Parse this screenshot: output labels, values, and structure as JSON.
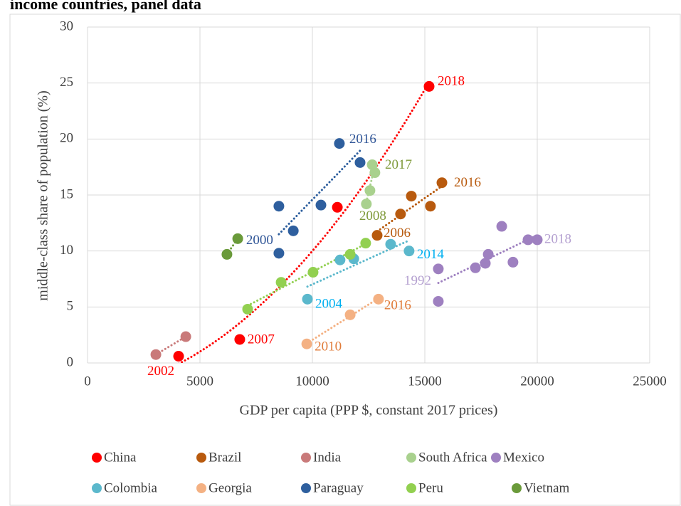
{
  "chart_data": {
    "type": "scatter",
    "title": "income countries, panel data",
    "x_label": "GDP per capita (PPP $, constant 2017 prices)",
    "y_label": "middle-class share of population (%)",
    "xlim": [
      0,
      25000
    ],
    "xticks": [
      0,
      5000,
      10000,
      15000,
      20000,
      25000
    ],
    "ylim": [
      0,
      30
    ],
    "yticks": [
      0,
      5,
      10,
      15,
      20,
      25,
      30
    ],
    "grid": true,
    "legend": "bottom",
    "series": [
      {
        "name": "China",
        "color": "#ff0000",
        "label_color": "#ff0000",
        "trendline_order": 2,
        "x": [
          4050,
          6770,
          11110,
          15190
        ],
        "values": [
          0.6,
          2.1,
          13.9,
          24.7
        ],
        "point_labels": [
          "2002",
          "2007",
          null,
          "2018"
        ]
      },
      {
        "name": "Brazil",
        "color": "#b85a0e",
        "label_color": "#b85a0e",
        "trendline_order": 1,
        "x": [
          12880,
          13920,
          14400,
          15250,
          15760
        ],
        "values": [
          11.4,
          13.3,
          14.9,
          14.0,
          16.1
        ],
        "point_labels": [
          "2006",
          null,
          null,
          null,
          "2016"
        ]
      },
      {
        "name": "India",
        "color": "#c97a7a",
        "label_color": "#c97a7a",
        "trendline_order": 1,
        "x": [
          3040,
          4370
        ],
        "values": [
          0.75,
          2.35
        ],
        "point_labels": [
          null,
          null
        ]
      },
      {
        "name": "South Africa",
        "color": "#a9d18e",
        "label_color": "#7f9a3a",
        "trendline_order": 1,
        "x": [
          12400,
          12560,
          12660,
          12780
        ],
        "values": [
          14.2,
          15.4,
          17.7,
          17.0
        ],
        "point_labels": [
          "2008",
          null,
          "2017",
          null
        ]
      },
      {
        "name": "Mexico",
        "color": "#9e80c0",
        "label_color": "#b4a0d0",
        "trendline_order": 1,
        "x": [
          15600,
          15600,
          17250,
          17690,
          17820,
          18420,
          18920,
          19590,
          20000
        ],
        "values": [
          8.4,
          5.5,
          8.5,
          8.9,
          9.7,
          12.2,
          9.0,
          11.0,
          11.0
        ],
        "point_labels": [
          "1992",
          null,
          null,
          null,
          null,
          null,
          null,
          null,
          "2018"
        ]
      },
      {
        "name": "Colombia",
        "color": "#5bb8cc",
        "label_color": "#00b0f0",
        "trendline_order": 1,
        "x": [
          9780,
          11230,
          11840,
          13480,
          14300
        ],
        "values": [
          5.7,
          9.2,
          9.3,
          10.6,
          10.0
        ],
        "point_labels": [
          "2004",
          null,
          null,
          null,
          "2014"
        ]
      },
      {
        "name": "Georgia",
        "color": "#f4b183",
        "label_color": "#e07b39",
        "trendline_order": 1,
        "x": [
          9750,
          11680,
          12940
        ],
        "values": [
          1.7,
          4.3,
          5.7
        ],
        "point_labels": [
          "2010",
          null,
          "2016"
        ]
      },
      {
        "name": "Paraguay",
        "color": "#2e5f9e",
        "label_color": "#2f5597",
        "trendline_order": 1,
        "x": [
          8510,
          8510,
          9150,
          10380,
          11200,
          12120
        ],
        "values": [
          14.0,
          9.8,
          11.8,
          14.1,
          19.6,
          17.9
        ],
        "point_labels": [
          null,
          "2000",
          null,
          null,
          "2016",
          null
        ]
      },
      {
        "name": "Peru",
        "color": "#92d050",
        "label_color": "#92d050",
        "trendline_order": 1,
        "x": [
          7120,
          8610,
          10030,
          11680,
          12370
        ],
        "values": [
          4.8,
          7.2,
          8.1,
          9.7,
          10.7
        ],
        "point_labels": [
          null,
          null,
          null,
          null,
          null
        ]
      },
      {
        "name": "Vietnam",
        "color": "#6a9a3a",
        "label_color": "#6a9a3a",
        "trendline_order": 1,
        "x": [
          6200,
          6680
        ],
        "values": [
          9.7,
          11.1
        ],
        "point_labels": [
          null,
          null
        ]
      }
    ]
  }
}
